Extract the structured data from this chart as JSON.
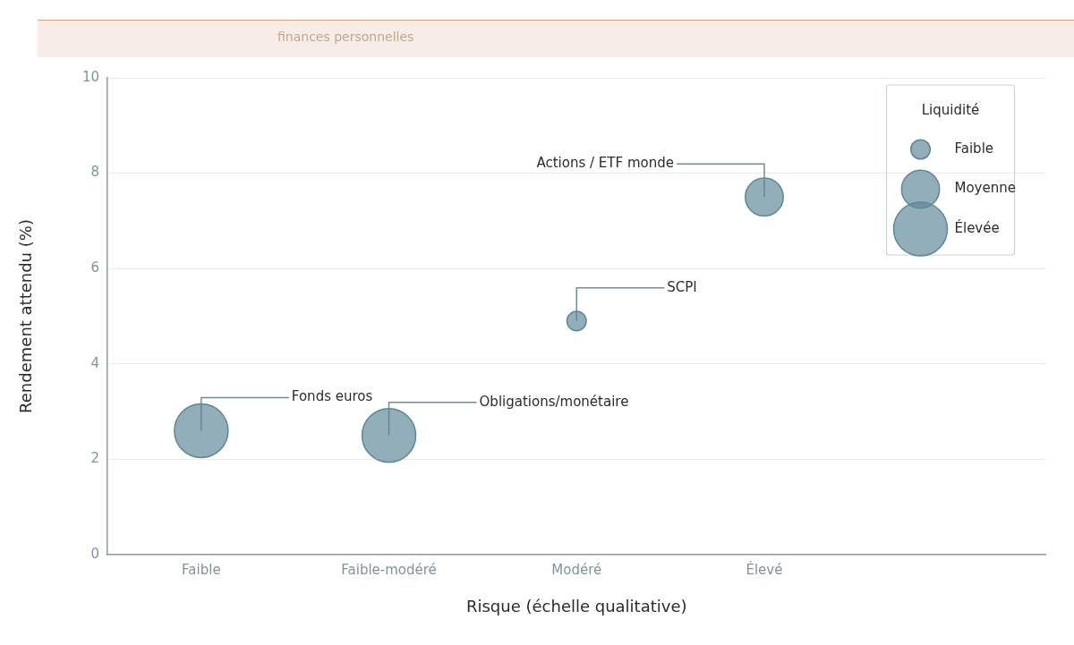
{
  "chart_data": {
    "type": "bubble",
    "subtitle": "finances personnelles",
    "xlabel": "Risque (échelle qualitative)",
    "ylabel": "Rendement attendu (%)",
    "legend_title": "Liquidité",
    "categories": [
      "Faible",
      "Faible-modéré",
      "Modéré",
      "Élevé",
      null
    ],
    "series": [
      {
        "color": "#5e8797",
        "values": [
          2.6,
          2.5,
          4.9,
          7.5,
          null
        ],
        "sizes": [
          1,
          1,
          0.13,
          0.5,
          null
        ]
      }
    ],
    "size_legend": [
      {
        "value": 0.13,
        "label": "Faible"
      },
      {
        "value": 0.5,
        "label": "Moyenne"
      },
      {
        "value": 1,
        "label": "Élevée"
      }
    ],
    "ylim": [
      0,
      10
    ],
    "yticks": [
      0,
      2,
      4,
      6,
      8,
      10
    ],
    "grid": "y",
    "marker": "circle",
    "annotations": [
      {
        "text": "Fonds euros",
        "x": "Faible",
        "y": 2.6
      },
      {
        "text": "Obligations/monétaire",
        "x": "Faible-modéré",
        "y": 2.5
      },
      {
        "text": "SCPI",
        "x": "Modéré",
        "y": 4.9
      },
      {
        "text": "Actions / ETF monde",
        "x": "Élevé",
        "y": 7.5
      }
    ]
  }
}
